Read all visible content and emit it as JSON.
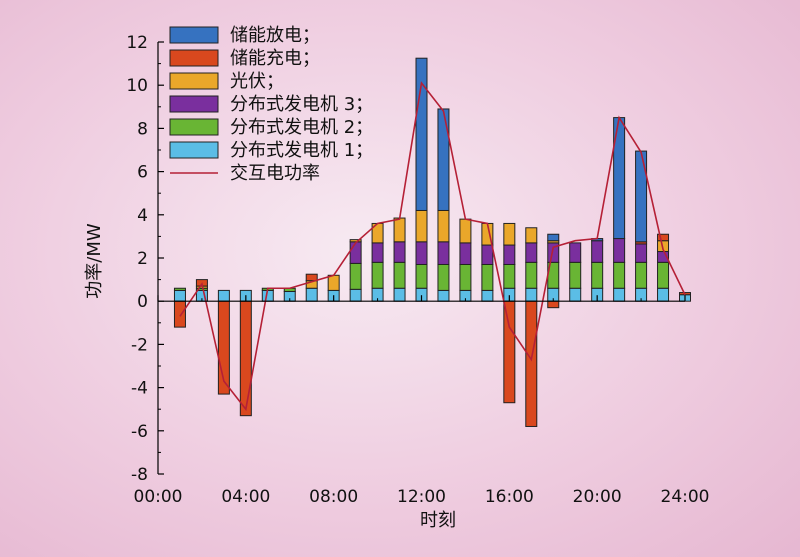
{
  "chart_data": {
    "type": "bar",
    "stacked": true,
    "xlabel": "时刻",
    "ylabel": "功率/MW",
    "ylim": [
      -8,
      12
    ],
    "yticks": [
      -8,
      -6,
      -4,
      -2,
      0,
      2,
      4,
      6,
      8,
      10,
      12
    ],
    "xlim": [
      0,
      24
    ],
    "xticks": [
      0,
      4,
      8,
      12,
      16,
      20,
      24
    ],
    "xtick_labels": [
      "00:00",
      "04:00",
      "08:00",
      "12:00",
      "16:00",
      "20:00",
      "24:00"
    ],
    "grid": false,
    "legend_position": "top-left",
    "hours": [
      1,
      2,
      3,
      4,
      5,
      6,
      7,
      8,
      9,
      10,
      11,
      12,
      13,
      14,
      15,
      16,
      17,
      18,
      19,
      20,
      21,
      22,
      23,
      24
    ],
    "series": [
      {
        "name": "分布式发电机 1；",
        "color": "#5bbde6",
        "values": [
          0.5,
          0.5,
          0.5,
          0.5,
          0.5,
          0.45,
          0.6,
          0.5,
          0.55,
          0.6,
          0.6,
          0.6,
          0.5,
          0.5,
          0.5,
          0.6,
          0.6,
          0.6,
          0.6,
          0.6,
          0.6,
          0.6,
          0.6,
          0.3
        ]
      },
      {
        "name": "分布式发电机 2；",
        "color": "#69b534",
        "values": [
          0.1,
          0.1,
          0,
          0,
          0.1,
          0.15,
          0,
          0,
          1.2,
          1.2,
          1.2,
          1.1,
          1.2,
          1.2,
          1.2,
          1.1,
          1.2,
          1.2,
          1.2,
          1.2,
          1.2,
          1.2,
          1.2,
          0
        ]
      },
      {
        "name": "分布式发电机 3；",
        "color": "#7a2f9e",
        "values": [
          0,
          0,
          0,
          0,
          0,
          0,
          0,
          0,
          1.0,
          0.9,
          0.95,
          1.05,
          1.05,
          1.0,
          0.9,
          0.9,
          0.9,
          0.9,
          0.9,
          1.0,
          1.1,
          0.85,
          0.5,
          0
        ]
      },
      {
        "name": "光伏；",
        "color": "#eaa72a",
        "values": [
          0,
          0.1,
          0,
          0,
          0,
          0,
          0.35,
          0.7,
          0.1,
          0.9,
          1.1,
          1.45,
          1.45,
          1.1,
          1.0,
          1.0,
          0.7,
          0.1,
          0,
          0,
          0,
          0,
          0.5,
          0
        ]
      },
      {
        "name": "储能充电；",
        "color": "#d9481e",
        "values": [
          -1.2,
          0.3,
          -4.3,
          -5.3,
          0,
          0,
          0.3,
          0,
          0,
          0,
          0,
          0,
          0,
          0,
          0,
          -4.7,
          -5.8,
          -0.3,
          0,
          0,
          0,
          0.1,
          0.3,
          0.1
        ]
      },
      {
        "name": "储能放电；",
        "color": "#3672c0",
        "values": [
          0,
          0,
          0,
          0,
          0,
          0,
          0,
          0,
          0,
          0,
          0,
          7.05,
          4.7,
          0,
          0,
          0,
          0,
          0.3,
          0,
          0.1,
          5.6,
          4.2,
          0,
          0
        ]
      }
    ],
    "line": {
      "name": "交互电功率",
      "color": "#b52036",
      "hours": [
        1,
        2,
        3,
        4,
        5,
        6,
        7,
        8,
        9,
        10,
        11,
        12,
        13,
        14,
        15,
        16,
        17,
        18,
        19,
        20,
        21,
        22,
        23,
        24
      ],
      "values": [
        -0.7,
        0.8,
        -3.7,
        -5.0,
        0.6,
        0.6,
        0.9,
        1.2,
        2.7,
        3.6,
        3.8,
        10.1,
        8.8,
        3.8,
        3.6,
        -1.2,
        -2.7,
        2.5,
        2.8,
        2.9,
        8.5,
        6.9,
        2.4,
        0.3
      ]
    },
    "legend_order": [
      "储能放电；",
      "储能充电；",
      "光伏；",
      "分布式发电机 3；",
      "分布式发电机 2；",
      "分布式发电机 1；",
      "交互电功率"
    ]
  }
}
